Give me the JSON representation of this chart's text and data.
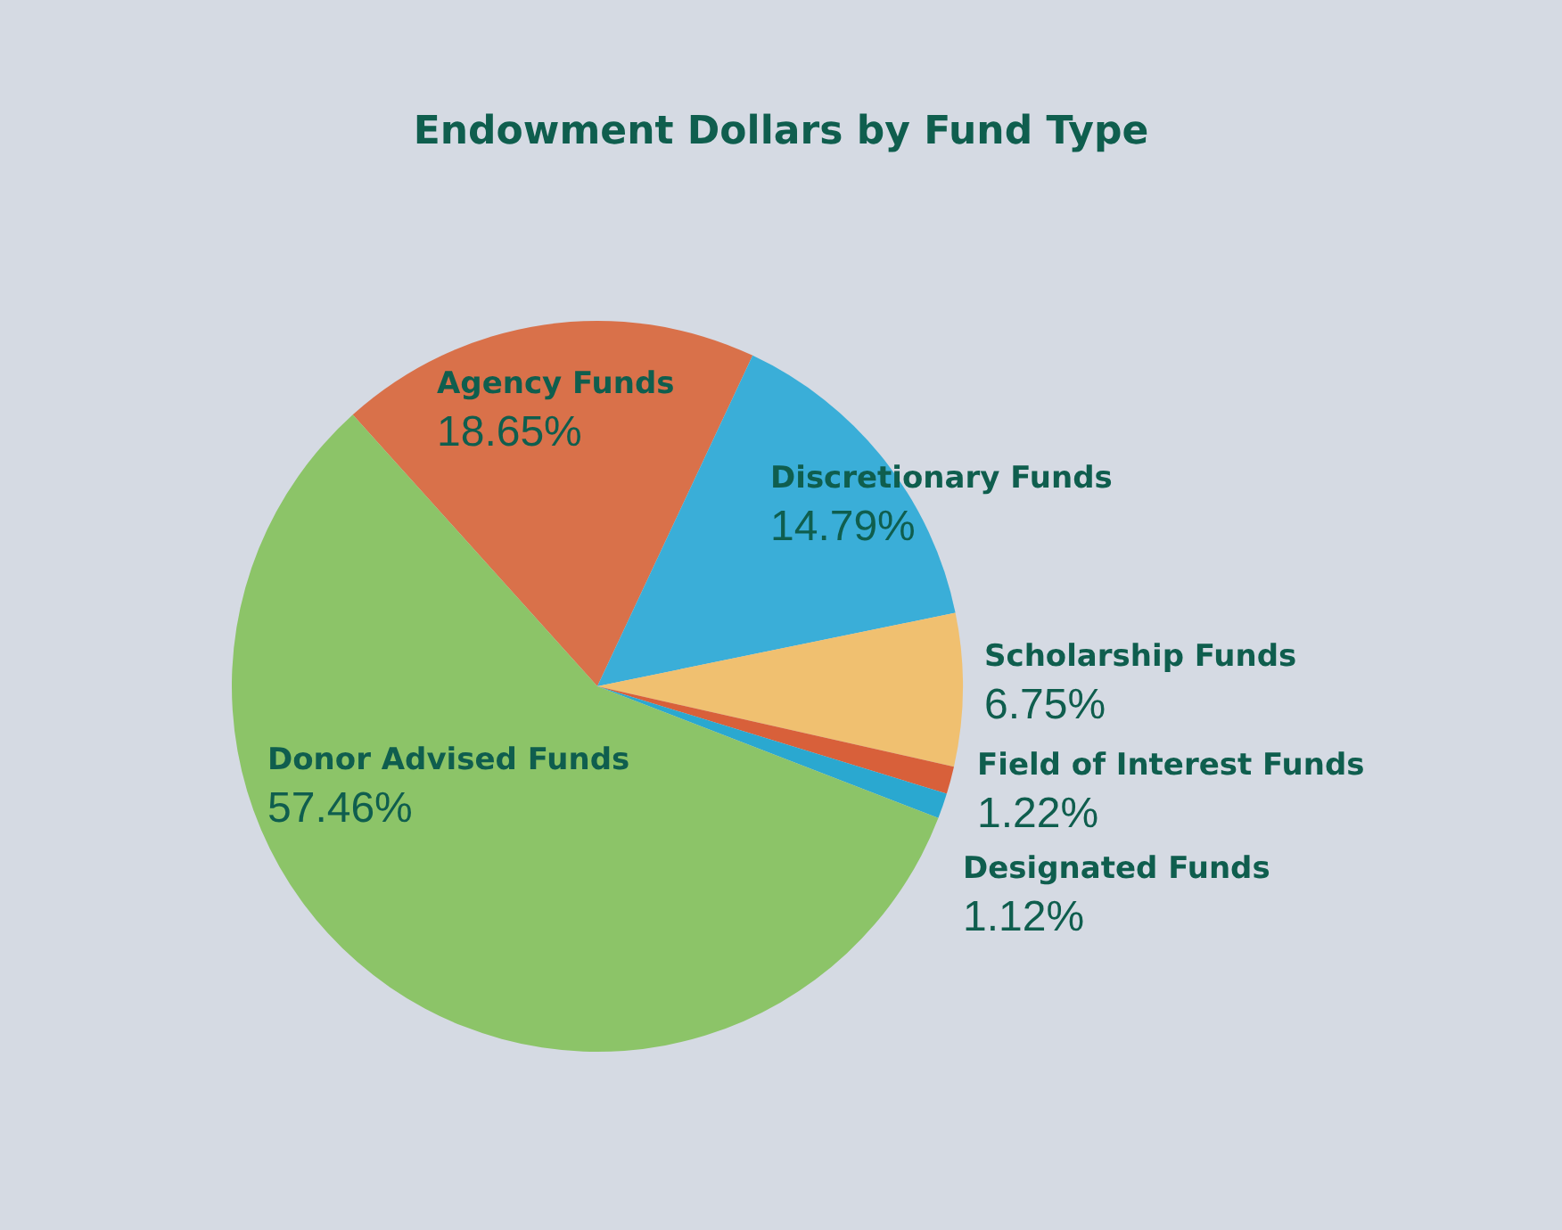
{
  "chart_data": {
    "type": "pie",
    "title": "Endowment Dollars by Fund Type",
    "categories": [
      "Agency Funds",
      "Discretionary Funds",
      "Scholarship Funds",
      "Field of Interest Funds",
      "Designated Funds",
      "Donor Advised Funds"
    ],
    "values": [
      18.65,
      14.79,
      6.75,
      1.22,
      1.12,
      57.46
    ],
    "colors": [
      "#d9714a",
      "#3aaed8",
      "#f0c070",
      "#d8603a",
      "#2aa8d0",
      "#8cc468"
    ],
    "value_labels": [
      "18.65%",
      "14.79%",
      "6.75%",
      "1.22%",
      "1.12%",
      "57.46%"
    ],
    "legend": false
  }
}
